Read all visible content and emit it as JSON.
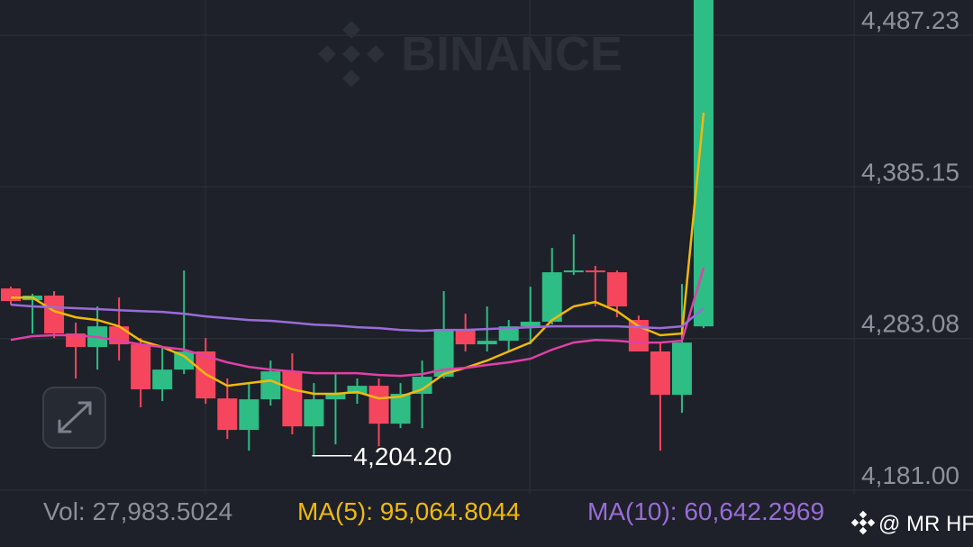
{
  "chart_data": {
    "type": "candlestick",
    "watermark": "BINANCE",
    "ylim": [
      4178.6,
      4510.9
    ],
    "yticks": [
      {
        "value": 4487.23,
        "label": "4,487.23"
      },
      {
        "value": 4385.15,
        "label": "4,385.15"
      },
      {
        "value": 4283.08,
        "label": "4,283.08"
      },
      {
        "value": 4181.0,
        "label": "4,181.00"
      }
    ],
    "grid": true,
    "up_color": "#2ebd85",
    "down_color": "#f6465d",
    "open": [
      4316.8,
      4308.9,
      4312.0,
      4286.5,
      4277.4,
      4291.3,
      4279.2,
      4248.9,
      4262.2,
      4274.4,
      4242.8,
      4221.6,
      4242.2,
      4261.0,
      4224.0,
      4242.2,
      4245.9,
      4251.3,
      4225.8,
      4245.9,
      4257.4,
      4289.5,
      4279.2,
      4281.6,
      4291.3,
      4294.4,
      4327.7,
      4328.9,
      4327.7,
      4295.6,
      4274.4,
      4245.2,
      4291.3
    ],
    "high": [
      4318.0,
      4313.2,
      4315.0,
      4293.8,
      4304.7,
      4310.7,
      4283.4,
      4277.4,
      4328.9,
      4283.4,
      4256.2,
      4253.1,
      4268.3,
      4273.1,
      4253.1,
      4259.2,
      4256.2,
      4256.2,
      4253.1,
      4268.3,
      4315.0,
      4299.8,
      4304.7,
      4295.6,
      4318.0,
      4344.1,
      4353.2,
      4332.0,
      4328.9,
      4298.6,
      4280.4,
      4319.8,
      4515.0
    ],
    "low": [
      4305.9,
      4286.5,
      4283.4,
      4256.2,
      4262.2,
      4268.3,
      4236.8,
      4241.0,
      4259.2,
      4239.2,
      4215.5,
      4207.6,
      4238.0,
      4218.6,
      4204.2,
      4211.9,
      4239.2,
      4210.7,
      4222.8,
      4222.8,
      4256.2,
      4274.4,
      4274.4,
      4274.4,
      4279.2,
      4292.5,
      4325.9,
      4304.7,
      4297.4,
      4274.4,
      4207.6,
      4233.1,
      4290.1
    ],
    "close": [
      4308.3,
      4312.0,
      4286.5,
      4277.4,
      4291.3,
      4279.2,
      4248.9,
      4262.2,
      4274.4,
      4242.8,
      4221.6,
      4242.2,
      4261.0,
      4224.0,
      4242.2,
      4245.9,
      4251.3,
      4225.8,
      4245.9,
      4257.4,
      4289.5,
      4279.2,
      4281.6,
      4291.3,
      4294.4,
      4327.7,
      4328.9,
      4327.7,
      4304.7,
      4274.4,
      4245.2,
      4280.4,
      4515.0
    ],
    "low_label": {
      "index": 14,
      "text": "4,204.20"
    },
    "lines": [
      {
        "color": "#f0b90b",
        "values": [
          4310.7,
          4310.7,
          4301.6,
          4297.4,
          4295.6,
          4291.3,
          4281.6,
          4277.4,
          4271.3,
          4259.2,
          4251.3,
          4253.1,
          4254.9,
          4248.9,
          4245.9,
          4245.9,
          4247.1,
          4242.8,
          4244.0,
          4248.9,
          4259.2,
          4263.4,
          4268.3,
          4274.4,
          4280.4,
          4295.6,
          4304.7,
          4307.7,
          4301.6,
          4291.3,
          4285.3,
          4286.5,
          4435.0
        ]
      },
      {
        "color": "#e040a8",
        "values": [
          4282.2,
          4284.7,
          4285.3,
          4285.3,
          4284.1,
          4281.6,
          4279.2,
          4277.4,
          4275.6,
          4271.3,
          4267.1,
          4264.0,
          4262.2,
          4261.0,
          4259.8,
          4259.8,
          4259.8,
          4258.6,
          4258.0,
          4259.2,
          4262.2,
          4263.4,
          4265.3,
          4267.1,
          4269.5,
          4275.6,
          4280.4,
          4282.2,
          4281.6,
          4280.4,
          4280.4,
          4281.6,
          4330.7
        ]
      },
      {
        "color": "#9a6cd8",
        "values": [
          4305.9,
          4304.7,
          4304.1,
          4303.5,
          4302.9,
          4302.2,
          4301.6,
          4301.0,
          4299.8,
          4298.0,
          4296.8,
          4295.6,
          4295.0,
          4293.8,
          4292.5,
          4291.9,
          4290.7,
          4290.1,
          4288.9,
          4288.3,
          4288.9,
          4288.9,
          4289.5,
          4290.1,
          4290.7,
          4291.3,
          4291.3,
          4291.3,
          4291.3,
          4290.7,
          4290.1,
          4291.3,
          4303.5
        ]
      }
    ],
    "footer": [
      {
        "text": "Vol: 27,983.5024",
        "color": "#8a8f98"
      },
      {
        "text": "MA(5): 95,064.8044",
        "color": "#f0b90b"
      },
      {
        "text": "MA(10): 60,642.2969",
        "color": "#9a6cd8"
      }
    ],
    "credit": "@ MR HF"
  }
}
